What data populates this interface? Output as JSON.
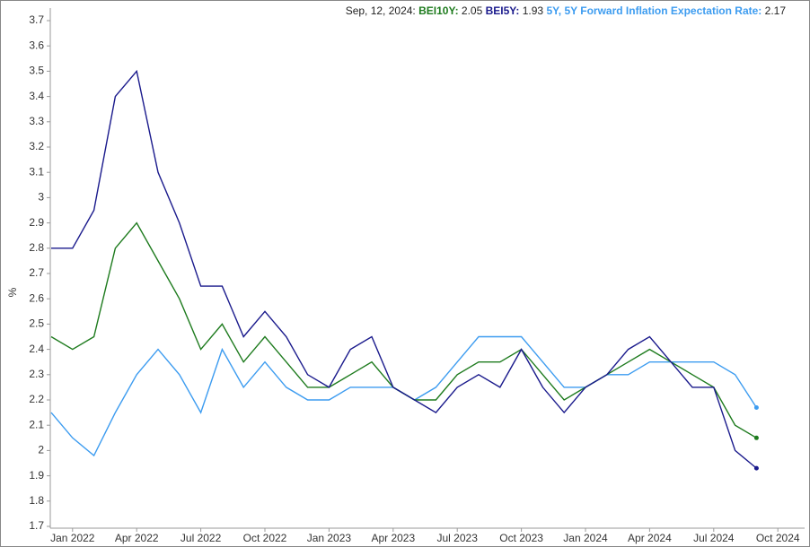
{
  "chart_data": {
    "type": "line",
    "header_date": "Sep, 12, 2024",
    "y_label": "%",
    "x": [
      "2021-12",
      "2022-01",
      "2022-02",
      "2022-03",
      "2022-04",
      "2022-05",
      "2022-06",
      "2022-07",
      "2022-08",
      "2022-09",
      "2022-10",
      "2022-11",
      "2022-12",
      "2023-01",
      "2023-02",
      "2023-03",
      "2023-04",
      "2023-05",
      "2023-06",
      "2023-07",
      "2023-08",
      "2023-09",
      "2023-10",
      "2023-11",
      "2023-12",
      "2024-01",
      "2024-02",
      "2024-03",
      "2024-04",
      "2024-05",
      "2024-06",
      "2024-07",
      "2024-08",
      "2024-09"
    ],
    "xlim": [
      "2021-12",
      "2024-11"
    ],
    "xticks": [
      {
        "value": "2022-01",
        "label": "Jan 2022"
      },
      {
        "value": "2022-04",
        "label": "Apr 2022"
      },
      {
        "value": "2022-07",
        "label": "Jul 2022"
      },
      {
        "value": "2022-10",
        "label": "Oct 2022"
      },
      {
        "value": "2023-01",
        "label": "Jan 2023"
      },
      {
        "value": "2023-04",
        "label": "Apr 2023"
      },
      {
        "value": "2023-07",
        "label": "Jul 2023"
      },
      {
        "value": "2023-10",
        "label": "Oct 2023"
      },
      {
        "value": "2024-01",
        "label": "Jan 2024"
      },
      {
        "value": "2024-04",
        "label": "Apr 2024"
      },
      {
        "value": "2024-07",
        "label": "Jul 2024"
      },
      {
        "value": "2024-10",
        "label": "Oct 2024"
      }
    ],
    "ylim": [
      1.7,
      3.7
    ],
    "yticks": [
      1.7,
      1.8,
      1.9,
      2,
      2.1,
      2.2,
      2.3,
      2.4,
      2.5,
      2.6,
      2.7,
      2.8,
      2.9,
      3,
      3.1,
      3.2,
      3.3,
      3.4,
      3.5,
      3.6,
      3.7
    ],
    "series": [
      {
        "name": "BEI10Y",
        "color": "#1e7b1e",
        "values": [
          2.45,
          2.4,
          2.45,
          2.8,
          2.9,
          2.75,
          2.6,
          2.4,
          2.5,
          2.35,
          2.45,
          2.35,
          2.25,
          2.25,
          2.3,
          2.35,
          2.25,
          2.2,
          2.2,
          2.3,
          2.35,
          2.35,
          2.4,
          2.3,
          2.2,
          2.25,
          2.3,
          2.35,
          2.4,
          2.35,
          2.3,
          2.25,
          2.1,
          2.05
        ]
      },
      {
        "name": "BEI5Y",
        "color": "#1a1a8c",
        "values": [
          2.8,
          2.8,
          2.95,
          3.4,
          3.5,
          3.1,
          2.9,
          2.65,
          2.65,
          2.45,
          2.55,
          2.45,
          2.3,
          2.25,
          2.4,
          2.45,
          2.25,
          2.2,
          2.15,
          2.25,
          2.3,
          2.25,
          2.4,
          2.25,
          2.15,
          2.25,
          2.3,
          2.4,
          2.45,
          2.35,
          2.25,
          2.25,
          2.0,
          1.93
        ]
      },
      {
        "name": "5Y, 5Y Forward Inflation Expectation Rate",
        "color": "#3d9cf0",
        "values": [
          2.15,
          2.05,
          1.98,
          2.15,
          2.3,
          2.4,
          2.3,
          2.15,
          2.4,
          2.25,
          2.35,
          2.25,
          2.2,
          2.2,
          2.25,
          2.25,
          2.25,
          2.2,
          2.25,
          2.35,
          2.45,
          2.45,
          2.45,
          2.35,
          2.25,
          2.25,
          2.3,
          2.3,
          2.35,
          2.35,
          2.35,
          2.35,
          2.3,
          2.17
        ]
      }
    ]
  }
}
